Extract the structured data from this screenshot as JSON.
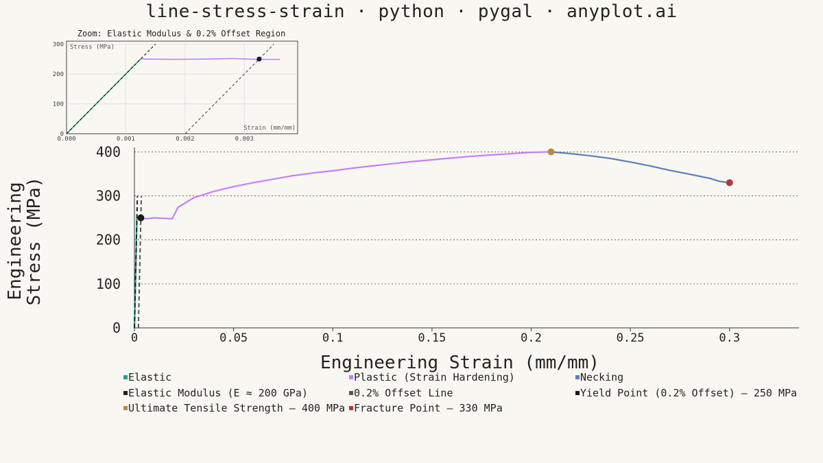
{
  "page_title": "line-stress-strain · python · pygal · anyplot.ai",
  "chart_data": [
    {
      "type": "line",
      "xlabel": "Engineering Strain (mm/mm)",
      "ylabel": "Engineering Stress (MPa)",
      "xlim": [
        0,
        0.335
      ],
      "ylim": [
        0,
        410
      ],
      "x_ticks": [
        0,
        0.05,
        0.1,
        0.15,
        0.2,
        0.25,
        0.3
      ],
      "x_tick_labels": [
        "0",
        "0.05",
        "0.1",
        "0.15",
        "0.2",
        "0.25",
        "0.3"
      ],
      "y_ticks": [
        0,
        100,
        200,
        300,
        400
      ],
      "y_tick_labels": [
        "0",
        "100",
        "200",
        "300",
        "400"
      ],
      "grid": "horizontal dotted",
      "legend_position": "bottom",
      "series": [
        {
          "name": "Elastic",
          "color": "#17a58b",
          "x": [
            0,
            0.00125
          ],
          "y": [
            0,
            250
          ]
        },
        {
          "name": "Plastic (Strain Hardening)",
          "color": "#c77dff",
          "x": [
            0.00125,
            0.003,
            0.006,
            0.01,
            0.015,
            0.019,
            0.022,
            0.03,
            0.04,
            0.05,
            0.06,
            0.07,
            0.08,
            0.09,
            0.1,
            0.11,
            0.12,
            0.13,
            0.14,
            0.15,
            0.16,
            0.17,
            0.18,
            0.19,
            0.2,
            0.21
          ],
          "y": [
            250,
            250,
            248,
            250,
            249,
            248,
            274,
            296,
            310,
            321,
            330,
            338,
            346,
            352,
            357,
            363,
            368,
            373,
            378,
            382,
            386,
            390,
            393,
            396,
            399,
            400
          ]
        },
        {
          "name": "Necking",
          "color": "#5a7fbf",
          "x": [
            0.21,
            0.22,
            0.23,
            0.24,
            0.25,
            0.26,
            0.27,
            0.28,
            0.29,
            0.295,
            0.3
          ],
          "y": [
            400,
            396,
            391,
            385,
            377,
            368,
            358,
            349,
            340,
            333,
            330
          ]
        },
        {
          "name": "Elastic Modulus (E ≈ 200 GPa)",
          "color": "#222222",
          "dashed": true,
          "x": [
            0,
            0.0015
          ],
          "y": [
            0,
            300
          ]
        },
        {
          "name": "0.2% Offset Line",
          "color": "#555555",
          "dashed": true,
          "x": [
            0.002,
            0.0035
          ],
          "y": [
            0,
            300
          ]
        },
        {
          "name": "Yield Point (0.2% Offset) — 250 MPa",
          "color": "#1a1a1a",
          "marker": true,
          "x": [
            0.00325
          ],
          "y": [
            250
          ]
        },
        {
          "name": "Ultimate Tensile Strength — 400 MPa",
          "color": "#b8894a",
          "marker": true,
          "x": [
            0.21
          ],
          "y": [
            400
          ]
        },
        {
          "name": "Fracture Point — 330 MPa",
          "color": "#b5373a",
          "marker": true,
          "x": [
            0.3
          ],
          "y": [
            330
          ]
        }
      ]
    },
    {
      "type": "line",
      "title": "Zoom: Elastic Modulus & 0.2% Offset Region",
      "xlabel": "Strain (mm/mm)",
      "ylabel": "Stress (MPa)",
      "xlim": [
        0,
        0.0039
      ],
      "ylim": [
        0,
        310
      ],
      "x_ticks": [
        0,
        0.001,
        0.002,
        0.003
      ],
      "x_tick_labels": [
        "0.000",
        "0.001",
        "0.002",
        "0.003"
      ],
      "y_ticks": [
        0,
        100,
        200,
        300
      ],
      "y_tick_labels": [
        "0",
        "100",
        "200",
        "300"
      ],
      "series": [
        {
          "name": "Elastic",
          "color": "#17a58b",
          "x": [
            0,
            0.00125
          ],
          "y": [
            0,
            250
          ]
        },
        {
          "name": "Plastic (Strain Hardening)",
          "color": "#c77dff",
          "x": [
            0.00125,
            0.0018,
            0.0024,
            0.0028,
            0.0032,
            0.0036
          ],
          "y": [
            250,
            249,
            250,
            252,
            249,
            249
          ]
        },
        {
          "name": "Elastic Modulus (E ≈ 200 GPa)",
          "color": "#222222",
          "dashed": true,
          "x": [
            0,
            0.0015
          ],
          "y": [
            0,
            300
          ]
        },
        {
          "name": "0.2% Offset Line",
          "color": "#555555",
          "dashed": true,
          "x": [
            0.002,
            0.0035
          ],
          "y": [
            0,
            300
          ]
        },
        {
          "name": "Yield Point (0.2% Offset) — 250 MPa",
          "color": "#1a1a1a",
          "marker": true,
          "x": [
            0.00325
          ],
          "y": [
            250
          ]
        }
      ]
    }
  ]
}
